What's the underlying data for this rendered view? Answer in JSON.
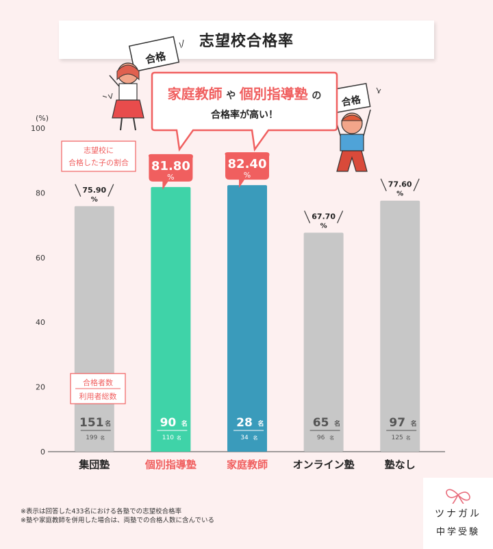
{
  "title": "志望校合格率",
  "callout": {
    "line1_a": "家庭教師",
    "line1_b": "や",
    "line1_c": "個別指導塾",
    "line1_d": "の",
    "line2": "合格率が高い！"
  },
  "note_rate": [
    "志望校に",
    "合格した子の割合"
  ],
  "note_count": [
    "合格者数",
    "利用者総数"
  ],
  "sign_text": "合格",
  "unit_count": "名",
  "colors": {
    "gray": "#c7c7c7",
    "green": "#3fd3a8",
    "blue": "#3a9bbb",
    "red": "#f05f5f",
    "bg": "#fdf0f0"
  },
  "chart_data": {
    "type": "bar",
    "ylabel": "(%)",
    "ylim": [
      0,
      100
    ],
    "yticks": [
      0,
      20,
      40,
      60,
      80,
      100
    ],
    "categories": [
      "集団塾",
      "個別指導塾",
      "家庭教師",
      "オンライン塾",
      "塾なし"
    ],
    "values": [
      75.9,
      81.8,
      82.4,
      67.7,
      77.6
    ],
    "value_labels": [
      "75.90",
      "81.80",
      "82.40",
      "67.70",
      "77.60"
    ],
    "percent_sign": "%",
    "passed": [
      151,
      90,
      28,
      65,
      97
    ],
    "total": [
      199,
      110,
      34,
      96,
      125
    ],
    "highlight": [
      false,
      true,
      true,
      false,
      false
    ],
    "bar_colors": [
      "#c7c7c7",
      "#3fd3a8",
      "#3a9bbb",
      "#c7c7c7",
      "#c7c7c7"
    ],
    "label_colors": [
      "#222222",
      "#f05f5f",
      "#f05f5f",
      "#222222",
      "#222222"
    ]
  },
  "footnotes": [
    "※表示は回答した433名における各塾での志望校合格率",
    "※塾や家庭教師を併用した場合は、両塾での合格人数に含んでいる"
  ],
  "logo": {
    "line1": "ツナガル",
    "line2": "中学受験"
  }
}
